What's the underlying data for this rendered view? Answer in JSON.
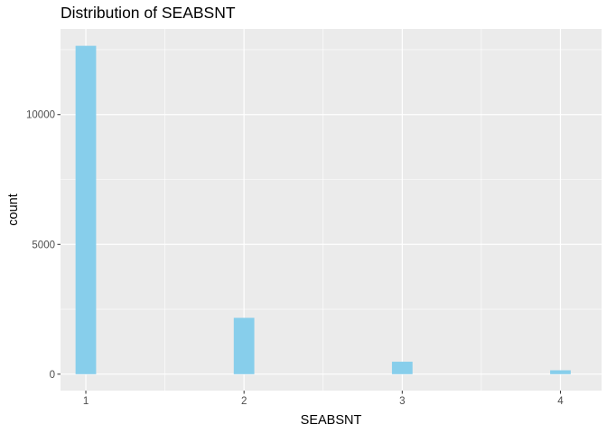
{
  "chart_data": {
    "type": "bar",
    "title": "Distribution of SEABSNT",
    "xlabel": "SEABSNT",
    "ylabel": "count",
    "xlim": [
      0.84,
      4.26
    ],
    "ylim": [
      -633,
      13300
    ],
    "x_ticks": [
      1,
      2,
      3,
      4
    ],
    "y_ticks": [
      0,
      5000,
      10000
    ],
    "bin_width": 0.13,
    "bars": [
      {
        "x": 1,
        "count": 12650
      },
      {
        "x": 2,
        "count": 2170
      },
      {
        "x": 3,
        "count": 480
      },
      {
        "x": 4,
        "count": 150
      }
    ],
    "grid": true,
    "fill_color": "#87ceeb",
    "panel_color": "#ebebeb",
    "grid_color": "#ffffff",
    "legend": "none"
  }
}
